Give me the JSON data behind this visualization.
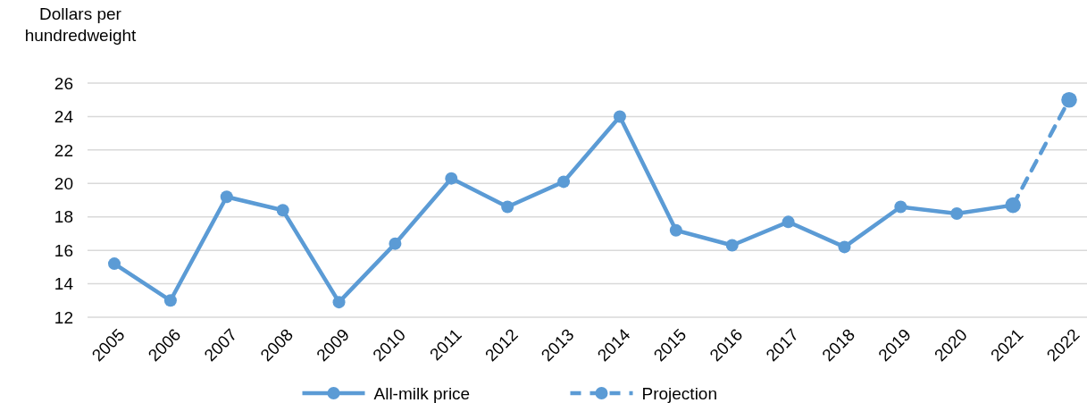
{
  "chart_data": {
    "type": "line",
    "ylabel": "Dollars per hundredweight",
    "categories": [
      "2005",
      "2006",
      "2007",
      "2008",
      "2009",
      "2010",
      "2011",
      "2012",
      "2013",
      "2014",
      "2015",
      "2016",
      "2017",
      "2018",
      "2019",
      "2020",
      "2021",
      "2022"
    ],
    "series": [
      {
        "name": "All-milk price",
        "color": "#5b9bd5",
        "line_style": "solid",
        "values": [
          15.2,
          13.0,
          19.2,
          18.4,
          12.9,
          16.4,
          20.3,
          18.6,
          20.1,
          24.0,
          17.2,
          16.3,
          17.7,
          16.2,
          18.6,
          18.2,
          18.7,
          null
        ]
      },
      {
        "name": "Projection",
        "color": "#5b9bd5",
        "line_style": "dashed",
        "values": [
          null,
          null,
          null,
          null,
          null,
          null,
          null,
          null,
          null,
          null,
          null,
          null,
          null,
          null,
          null,
          null,
          18.7,
          25.0
        ]
      }
    ],
    "ylim": [
      12,
      26
    ],
    "yticks": [
      12,
      14,
      16,
      18,
      20,
      22,
      24,
      26
    ],
    "grid": "y",
    "legend": "bottom",
    "marker": "circle"
  }
}
